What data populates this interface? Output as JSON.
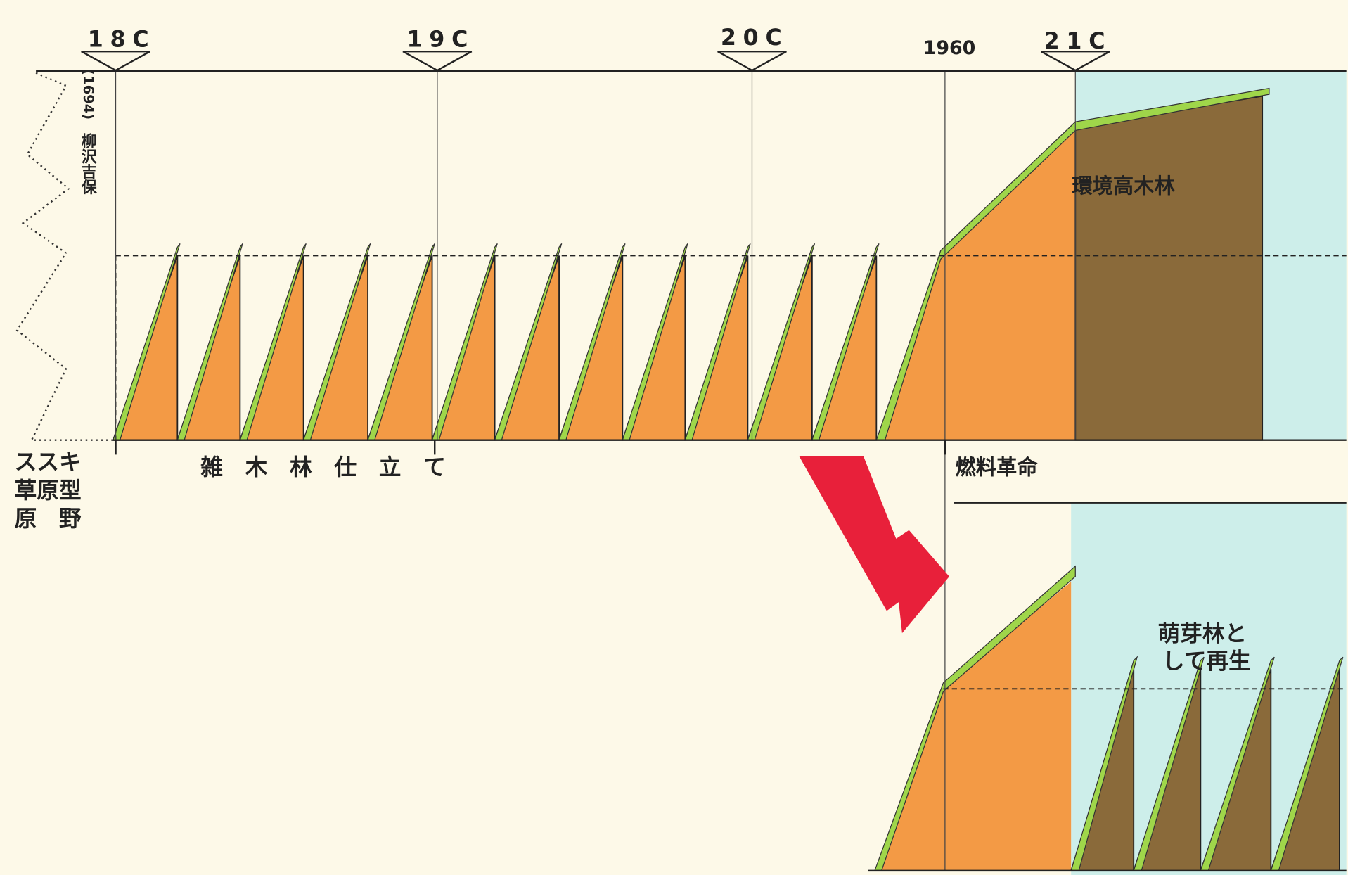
{
  "markers": [
    "18C",
    "19C",
    "20C",
    "1960",
    "21C"
  ],
  "side_note": {
    "year": "(1694)",
    "name": "柳沢吉保"
  },
  "start_label": [
    "ススキ",
    "草原型",
    "原　野"
  ],
  "phase_coppice": "雑　木　林　仕　立　て",
  "phase_fuel": "燃料革命",
  "upper_label": "環境高木林",
  "lower_label": [
    "萌芽林と",
    "して再生"
  ]
}
